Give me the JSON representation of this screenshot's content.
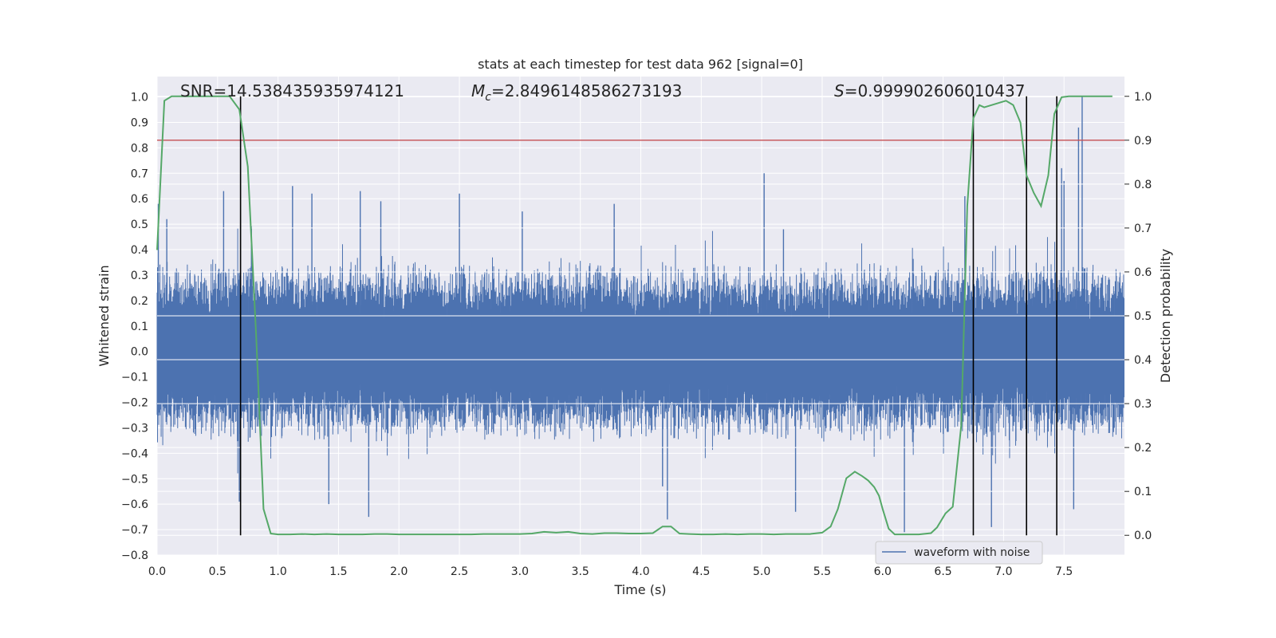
{
  "chart_data": {
    "type": "line",
    "title": "stats at each timestep for test data 962 [signal=0]",
    "xlabel": "Time (s)",
    "ylabel": "Whitened strain",
    "y2label": "Detection probability",
    "xlim": [
      0.0,
      8.0
    ],
    "ylim": [
      -0.8,
      1.08
    ],
    "y2lim": [
      -0.045,
      1.045
    ],
    "x_ticks": [
      "0.0",
      "0.5",
      "1.0",
      "1.5",
      "2.0",
      "2.5",
      "3.0",
      "3.5",
      "4.0",
      "4.5",
      "5.0",
      "5.5",
      "6.0",
      "6.5",
      "7.0",
      "7.5"
    ],
    "x_tick_values": [
      0,
      0.5,
      1,
      1.5,
      2,
      2.5,
      3,
      3.5,
      4,
      4.5,
      5,
      5.5,
      6,
      6.5,
      7,
      7.5
    ],
    "y_ticks": [
      "1.0",
      "0.9",
      "0.8",
      "0.7",
      "0.6",
      "0.5",
      "0.4",
      "0.3",
      "0.2",
      "0.1",
      "0.0",
      "−0.1",
      "−0.2",
      "−0.3",
      "−0.4",
      "−0.5",
      "−0.6",
      "−0.7",
      "−0.8"
    ],
    "y_tick_values": [
      1.0,
      0.9,
      0.8,
      0.7,
      0.6,
      0.5,
      0.4,
      0.3,
      0.2,
      0.1,
      0.0,
      -0.1,
      -0.2,
      -0.3,
      -0.4,
      -0.5,
      -0.6,
      -0.7,
      -0.8
    ],
    "y2_ticks": [
      "1.0",
      "0.9",
      "0.8",
      "0.7",
      "0.6",
      "0.5",
      "0.4",
      "0.3",
      "0.2",
      "0.1",
      "0.0"
    ],
    "y2_tick_values": [
      1.0,
      0.9,
      0.8,
      0.7,
      0.6,
      0.5,
      0.4,
      0.3,
      0.2,
      0.1,
      0.0
    ],
    "grid": true,
    "legend_position": "bottom-right",
    "annotations": {
      "snr": "SNR=14.538435935974121",
      "mc_symbol": "M",
      "mc_sub": "c",
      "mc_value": "=2.8496148586273193",
      "s_symbol": "S",
      "s_value": "=0.999902606010437"
    },
    "series": [
      {
        "name": "waveform with noise",
        "color": "#4c72b0",
        "axis": "left",
        "style": "noise",
        "base_amplitude": 0.3,
        "spikes": [
          {
            "x": 0.01,
            "y": 0.58
          },
          {
            "x": 0.08,
            "y": 0.52
          },
          {
            "x": 0.55,
            "y": 0.63
          },
          {
            "x": 0.68,
            "y": -0.59
          },
          {
            "x": 0.78,
            "y": 0.49
          },
          {
            "x": 1.12,
            "y": 0.65
          },
          {
            "x": 1.28,
            "y": 0.62
          },
          {
            "x": 1.42,
            "y": -0.6
          },
          {
            "x": 1.68,
            "y": 0.63
          },
          {
            "x": 1.75,
            "y": -0.65
          },
          {
            "x": 1.85,
            "y": 0.59
          },
          {
            "x": 2.5,
            "y": 0.62
          },
          {
            "x": 3.02,
            "y": 0.55
          },
          {
            "x": 3.78,
            "y": 0.58
          },
          {
            "x": 4.18,
            "y": -0.53
          },
          {
            "x": 4.22,
            "y": -0.66
          },
          {
            "x": 5.02,
            "y": 0.7
          },
          {
            "x": 5.18,
            "y": 0.48
          },
          {
            "x": 5.28,
            "y": -0.63
          },
          {
            "x": 6.18,
            "y": -0.71
          },
          {
            "x": 6.68,
            "y": 0.61
          },
          {
            "x": 6.9,
            "y": -0.69
          },
          {
            "x": 7.48,
            "y": 0.72
          },
          {
            "x": 7.5,
            "y": 0.67
          },
          {
            "x": 7.62,
            "y": 0.88
          },
          {
            "x": 7.65,
            "y": 1.0
          },
          {
            "x": 7.58,
            "y": -0.62
          }
        ]
      },
      {
        "name": "detection probability",
        "color": "#55a868",
        "axis": "right",
        "x": [
          0.0,
          0.06,
          0.12,
          0.2,
          0.3,
          0.4,
          0.5,
          0.6,
          0.68,
          0.75,
          0.82,
          0.88,
          0.94,
          1.0,
          1.1,
          1.2,
          1.3,
          1.4,
          1.5,
          1.6,
          1.7,
          1.8,
          1.9,
          2.0,
          2.1,
          2.2,
          2.3,
          2.4,
          2.5,
          2.6,
          2.7,
          2.8,
          2.9,
          3.0,
          3.1,
          3.2,
          3.3,
          3.4,
          3.5,
          3.6,
          3.7,
          3.8,
          3.9,
          4.0,
          4.1,
          4.18,
          4.25,
          4.32,
          4.4,
          4.5,
          4.6,
          4.7,
          4.8,
          4.9,
          5.0,
          5.1,
          5.2,
          5.3,
          5.4,
          5.5,
          5.57,
          5.63,
          5.7,
          5.77,
          5.83,
          5.88,
          5.93,
          5.97,
          6.0,
          6.05,
          6.1,
          6.2,
          6.3,
          6.4,
          6.45,
          6.52,
          6.58,
          6.65,
          6.7,
          6.75,
          6.8,
          6.84,
          6.9,
          6.96,
          7.02,
          7.08,
          7.14,
          7.19,
          7.25,
          7.31,
          7.37,
          7.42,
          7.48,
          7.54,
          7.6,
          7.7,
          7.8,
          7.9
        ],
        "y": [
          0.65,
          0.99,
          1.0,
          1.0,
          1.0,
          1.0,
          1.0,
          1.0,
          0.97,
          0.84,
          0.45,
          0.06,
          0.004,
          0.002,
          0.002,
          0.003,
          0.002,
          0.003,
          0.002,
          0.002,
          0.002,
          0.003,
          0.003,
          0.002,
          0.002,
          0.002,
          0.002,
          0.002,
          0.002,
          0.002,
          0.003,
          0.003,
          0.003,
          0.003,
          0.004,
          0.008,
          0.006,
          0.008,
          0.004,
          0.003,
          0.005,
          0.005,
          0.004,
          0.004,
          0.005,
          0.02,
          0.02,
          0.004,
          0.003,
          0.002,
          0.002,
          0.003,
          0.002,
          0.003,
          0.003,
          0.002,
          0.003,
          0.003,
          0.003,
          0.006,
          0.02,
          0.06,
          0.13,
          0.145,
          0.135,
          0.125,
          0.11,
          0.09,
          0.06,
          0.015,
          0.002,
          0.002,
          0.002,
          0.005,
          0.018,
          0.05,
          0.065,
          0.25,
          0.75,
          0.95,
          0.98,
          0.975,
          0.98,
          0.985,
          0.99,
          0.98,
          0.94,
          0.82,
          0.78,
          0.75,
          0.82,
          0.96,
          0.998,
          1.0,
          1.0,
          1.0,
          1.0,
          1.0
        ]
      }
    ],
    "threshold": {
      "axis": "right",
      "value": 0.9,
      "color": "#c44e52"
    },
    "event_lines_x": [
      0.69,
      6.75,
      7.19,
      7.44
    ]
  }
}
